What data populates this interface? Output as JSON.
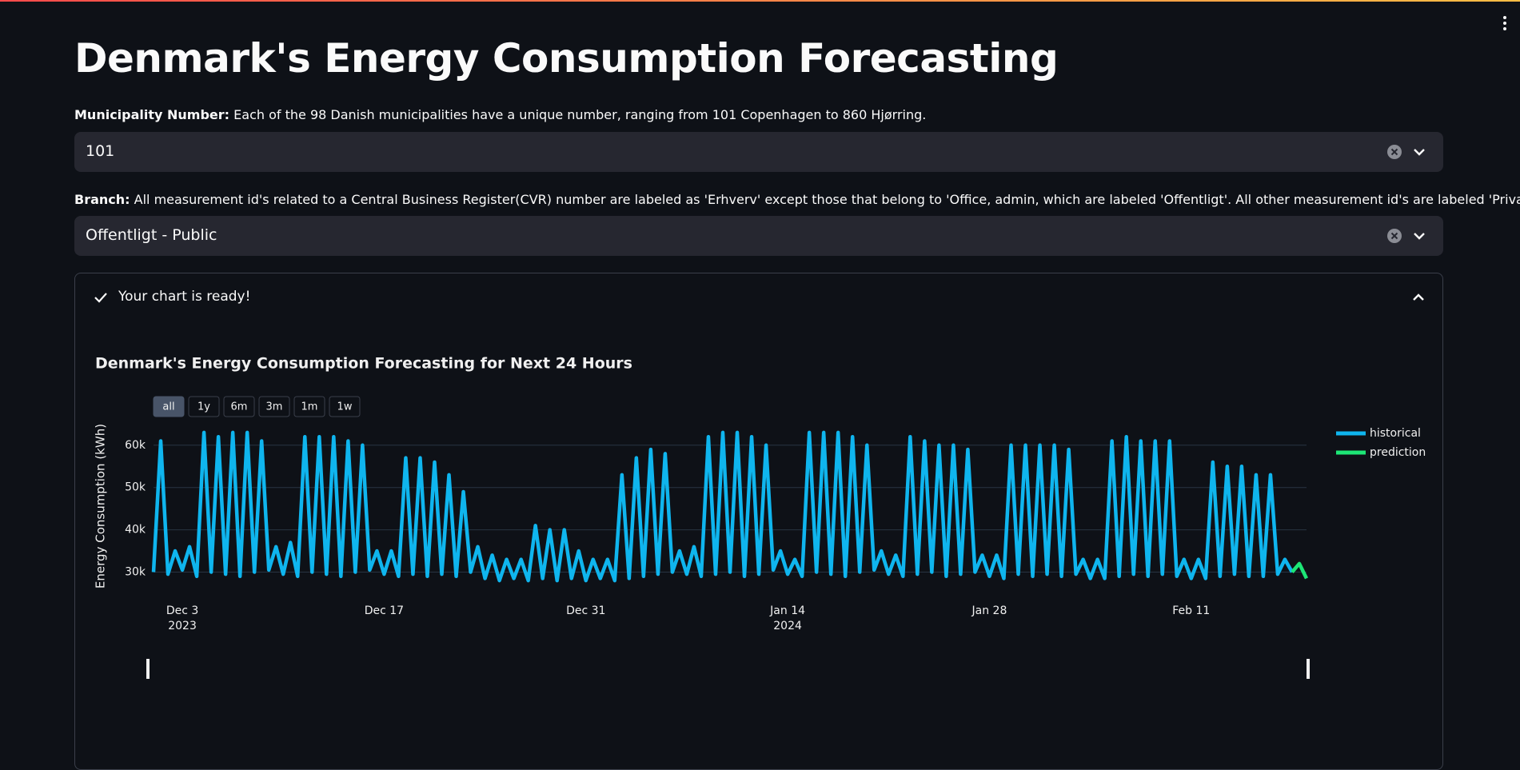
{
  "header": {
    "title": "Denmark's Energy Consumption Forecasting"
  },
  "fields": [
    {
      "label": "Municipality Number:",
      "help": "Each of the 98 Danish municipalities have a unique number, ranging from 101 Copenhagen to 860 Hjørring.",
      "value": "101"
    },
    {
      "label": "Branch:",
      "help": "All measurement id's related to a Central Business Register(CVR) number are labeled as 'Erhverv' except those that belong to 'Office, admin, which are labeled 'Offentligt'. All other measurement id's are labeled 'Privat'.",
      "value": "Offentligt - Public"
    }
  ],
  "expander": {
    "label": "Your chart is ready!"
  },
  "chart_data": {
    "type": "line",
    "title": "Denmark's Energy Consumption Forecasting for Next 24 Hours",
    "ylabel": "Energy Consumption (kWh)",
    "range_buttons": [
      "all",
      "1y",
      "6m",
      "3m",
      "1m",
      "1w"
    ],
    "grid": true,
    "legend": "right",
    "xlim": [
      "2023-12-01 00:00",
      "2024-02-19 00:00"
    ],
    "xticks": [
      {
        "value": "2023-12-03 00:00",
        "label": "Dec 3"
      },
      {
        "value": "2023-12-17 00:00",
        "label": "Dec 17"
      },
      {
        "value": "2023-12-31 00:00",
        "label": "Dec 31"
      },
      {
        "value": "2024-01-14 00:00",
        "label": "Jan 14"
      },
      {
        "value": "2024-01-28 00:00",
        "label": "Jan 28"
      },
      {
        "value": "2024-02-11 00:00",
        "label": "Feb 11"
      }
    ],
    "xtick_years": [
      {
        "value": "2023-12-03 00:00",
        "label": "2023"
      },
      {
        "value": "2024-01-14 00:00",
        "label": "2024"
      }
    ],
    "ylim": [
      26500,
      64500
    ],
    "yticks": [
      {
        "value": 30000,
        "label": "30k"
      },
      {
        "value": 40000,
        "label": "40k"
      },
      {
        "value": 50000,
        "label": "50k"
      },
      {
        "value": 60000,
        "label": "60k"
      }
    ],
    "x": [
      "2023-12-01 00:00",
      "2023-12-01 12:00",
      "2023-12-02 00:00",
      "2023-12-02 12:00",
      "2023-12-03 00:00",
      "2023-12-03 12:00",
      "2023-12-04 00:00",
      "2023-12-04 12:00",
      "2023-12-05 00:00",
      "2023-12-05 12:00",
      "2023-12-06 00:00",
      "2023-12-06 12:00",
      "2023-12-07 00:00",
      "2023-12-07 12:00",
      "2023-12-08 00:00",
      "2023-12-08 12:00",
      "2023-12-09 00:00",
      "2023-12-09 12:00",
      "2023-12-10 00:00",
      "2023-12-10 12:00",
      "2023-12-11 00:00",
      "2023-12-11 12:00",
      "2023-12-12 00:00",
      "2023-12-12 12:00",
      "2023-12-13 00:00",
      "2023-12-13 12:00",
      "2023-12-14 00:00",
      "2023-12-14 12:00",
      "2023-12-15 00:00",
      "2023-12-15 12:00",
      "2023-12-16 00:00",
      "2023-12-16 12:00",
      "2023-12-17 00:00",
      "2023-12-17 12:00",
      "2023-12-18 00:00",
      "2023-12-18 12:00",
      "2023-12-19 00:00",
      "2023-12-19 12:00",
      "2023-12-20 00:00",
      "2023-12-20 12:00",
      "2023-12-21 00:00",
      "2023-12-21 12:00",
      "2023-12-22 00:00",
      "2023-12-22 12:00",
      "2023-12-23 00:00",
      "2023-12-23 12:00",
      "2023-12-24 00:00",
      "2023-12-24 12:00",
      "2023-12-25 00:00",
      "2023-12-25 12:00",
      "2023-12-26 00:00",
      "2023-12-26 12:00",
      "2023-12-27 00:00",
      "2023-12-27 12:00",
      "2023-12-28 00:00",
      "2023-12-28 12:00",
      "2023-12-29 00:00",
      "2023-12-29 12:00",
      "2023-12-30 00:00",
      "2023-12-30 12:00",
      "2023-12-31 00:00",
      "2023-12-31 12:00",
      "2024-01-01 00:00",
      "2024-01-01 12:00",
      "2024-01-02 00:00",
      "2024-01-02 12:00",
      "2024-01-03 00:00",
      "2024-01-03 12:00",
      "2024-01-04 00:00",
      "2024-01-04 12:00",
      "2024-01-05 00:00",
      "2024-01-05 12:00",
      "2024-01-06 00:00",
      "2024-01-06 12:00",
      "2024-01-07 00:00",
      "2024-01-07 12:00",
      "2024-01-08 00:00",
      "2024-01-08 12:00",
      "2024-01-09 00:00",
      "2024-01-09 12:00",
      "2024-01-10 00:00",
      "2024-01-10 12:00",
      "2024-01-11 00:00",
      "2024-01-11 12:00",
      "2024-01-12 00:00",
      "2024-01-12 12:00",
      "2024-01-13 00:00",
      "2024-01-13 12:00",
      "2024-01-14 00:00",
      "2024-01-14 12:00",
      "2024-01-15 00:00",
      "2024-01-15 12:00",
      "2024-01-16 00:00",
      "2024-01-16 12:00",
      "2024-01-17 00:00",
      "2024-01-17 12:00",
      "2024-01-18 00:00",
      "2024-01-18 12:00",
      "2024-01-19 00:00",
      "2024-01-19 12:00",
      "2024-01-20 00:00",
      "2024-01-20 12:00",
      "2024-01-21 00:00",
      "2024-01-21 12:00",
      "2024-01-22 00:00",
      "2024-01-22 12:00",
      "2024-01-23 00:00",
      "2024-01-23 12:00",
      "2024-01-24 00:00",
      "2024-01-24 12:00",
      "2024-01-25 00:00",
      "2024-01-25 12:00",
      "2024-01-26 00:00",
      "2024-01-26 12:00",
      "2024-01-27 00:00",
      "2024-01-27 12:00",
      "2024-01-28 00:00",
      "2024-01-28 12:00",
      "2024-01-29 00:00",
      "2024-01-29 12:00",
      "2024-01-30 00:00",
      "2024-01-30 12:00",
      "2024-01-31 00:00",
      "2024-01-31 12:00",
      "2024-02-01 00:00",
      "2024-02-01 12:00",
      "2024-02-02 00:00",
      "2024-02-02 12:00",
      "2024-02-03 00:00",
      "2024-02-03 12:00",
      "2024-02-04 00:00",
      "2024-02-04 12:00",
      "2024-02-05 00:00",
      "2024-02-05 12:00",
      "2024-02-06 00:00",
      "2024-02-06 12:00",
      "2024-02-07 00:00",
      "2024-02-07 12:00",
      "2024-02-08 00:00",
      "2024-02-08 12:00",
      "2024-02-09 00:00",
      "2024-02-09 12:00",
      "2024-02-10 00:00",
      "2024-02-10 12:00",
      "2024-02-11 00:00",
      "2024-02-11 12:00",
      "2024-02-12 00:00",
      "2024-02-12 12:00",
      "2024-02-13 00:00",
      "2024-02-13 12:00",
      "2024-02-14 00:00",
      "2024-02-14 12:00",
      "2024-02-15 00:00",
      "2024-02-15 12:00",
      "2024-02-16 00:00",
      "2024-02-16 12:00",
      "2024-02-17 00:00",
      "2024-02-17 12:00",
      "2024-02-18 00:00"
    ],
    "series": [
      {
        "name": "historical",
        "color": "#0fb5ee",
        "values": [
          30000,
          61000,
          29500,
          35000,
          30500,
          36000,
          29000,
          63000,
          30000,
          62000,
          29500,
          63000,
          29000,
          63000,
          30000,
          61000,
          30500,
          36000,
          29500,
          37000,
          29000,
          62000,
          30000,
          62000,
          29500,
          62000,
          29000,
          61000,
          30000,
          60000,
          30500,
          35000,
          29500,
          35000,
          29000,
          57000,
          29500,
          57000,
          29000,
          56000,
          29500,
          53000,
          29000,
          49000,
          30000,
          36000,
          28500,
          34000,
          28000,
          33000,
          28500,
          33000,
          28000,
          41000,
          28500,
          40000,
          28000,
          40000,
          28500,
          35000,
          28000,
          33000,
          28500,
          33000,
          28000,
          53000,
          28500,
          57000,
          29000,
          59000,
          29500,
          58000,
          30000,
          35000,
          29500,
          36000,
          29000,
          62000,
          29500,
          63000,
          30000,
          63000,
          29000,
          62000,
          29500,
          60000,
          30500,
          35000,
          29500,
          33000,
          29000,
          63000,
          30000,
          63000,
          29500,
          63000,
          29000,
          62000,
          30000,
          60000,
          30500,
          35000,
          29500,
          34000,
          29000,
          62000,
          29500,
          61000,
          30000,
          60000,
          29000,
          60000,
          29500,
          59000,
          30000,
          34000,
          29000,
          34000,
          28500,
          60000,
          29500,
          60000,
          29000,
          60000,
          29500,
          60000,
          29000,
          59000,
          29500,
          33000,
          28500,
          33000,
          28500,
          61000,
          29000,
          62000,
          29500,
          61000,
          29000,
          61000,
          29500,
          61000,
          29000,
          33000,
          28500,
          33000,
          28500,
          56000,
          29000,
          55000,
          29500,
          55000,
          29000,
          53000,
          29000,
          53000,
          29500,
          33000,
          30000
        ]
      },
      {
        "name": "prediction",
        "color": "#1de676",
        "x": [
          "2024-02-18 00:00",
          "2024-02-18 12:00",
          "2024-02-19 00:00"
        ],
        "values": [
          30000,
          32000,
          28500
        ]
      }
    ]
  }
}
